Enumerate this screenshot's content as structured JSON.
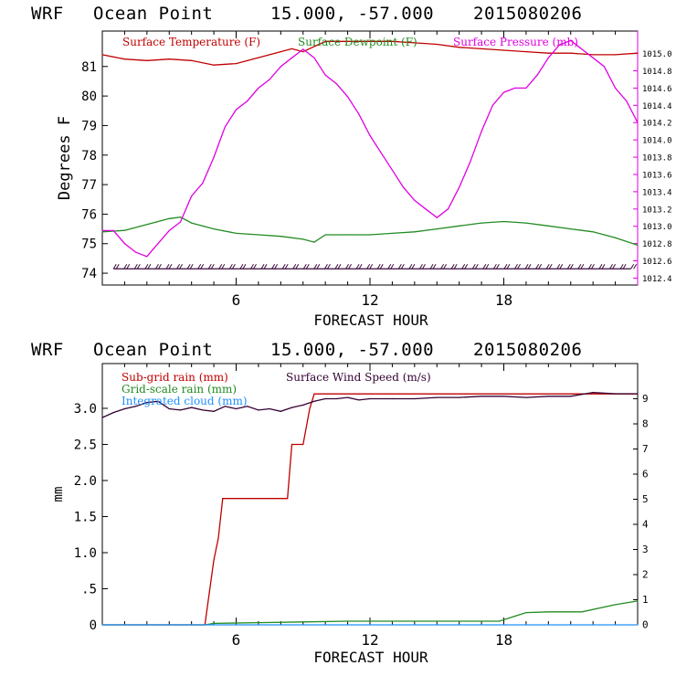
{
  "charts": [
    {
      "header": {
        "model": "WRF",
        "location": "Ocean Point",
        "coords": "15.000, -57.000",
        "date": "2015080206"
      },
      "xlabel": "FORECAST HOUR",
      "ylabel": "Degrees F"
    },
    {
      "header": {
        "model": "WRF",
        "location": "Ocean Point",
        "coords": "15.000, -57.000",
        "date": "2015080206"
      },
      "xlabel": "FORECAST HOUR",
      "ylabel": "mm"
    }
  ],
  "colors": {
    "red": "#c00000",
    "green": "#228b22",
    "magenta": "#e000e0",
    "purple": "#330033",
    "blue": "#1e90ff",
    "barb": "#3a0a3a"
  },
  "chart_data": [
    {
      "type": "line",
      "xlabel": "FORECAST HOUR",
      "ylabel": "Degrees F",
      "xlim": [
        0,
        24
      ],
      "x_ticks": [
        6,
        12,
        18
      ],
      "ylim": [
        73.6,
        82.2
      ],
      "y_ticks": [
        74,
        75,
        76,
        77,
        78,
        79,
        80,
        81
      ],
      "y2lim": [
        1012.32,
        1015.26
      ],
      "y2_ticks": [
        "1012.4",
        "1012.6",
        "1012.8",
        "1013.0",
        "1013.2",
        "1013.4",
        "1013.6",
        "1013.8",
        "1014.0",
        "1014.2",
        "1014.4",
        "1014.6",
        "1014.8",
        "1015.0"
      ],
      "y2_tick_values": [
        1012.4,
        1012.6,
        1012.8,
        1013.0,
        1013.2,
        1013.4,
        1013.6,
        1013.8,
        1014.0,
        1014.2,
        1014.4,
        1014.6,
        1014.8,
        1015.0
      ],
      "legend": [
        "Surface Temperature (F)",
        "Surface Dewpoint (F)",
        "Surface Pressure (mb)"
      ],
      "series": [
        {
          "name": "Surface Temperature (F)",
          "axis": "left",
          "x": [
            0,
            1,
            2,
            3,
            4,
            5,
            6,
            7,
            8,
            8.5,
            9,
            10,
            11,
            12,
            13,
            14,
            15,
            16,
            17,
            18,
            19,
            20,
            21,
            22,
            23,
            24
          ],
          "y": [
            81.4,
            81.25,
            81.2,
            81.25,
            81.2,
            81.05,
            81.1,
            81.3,
            81.5,
            81.6,
            81.5,
            81.85,
            81.85,
            81.85,
            81.85,
            81.8,
            81.75,
            81.65,
            81.6,
            81.55,
            81.5,
            81.45,
            81.45,
            81.4,
            81.4,
            81.45
          ]
        },
        {
          "name": "Surface Dewpoint (F)",
          "axis": "left",
          "x": [
            0,
            1,
            2,
            3,
            3.5,
            4,
            5,
            6,
            7,
            8,
            9,
            9.5,
            10,
            11,
            12,
            13,
            14,
            15,
            16,
            17,
            18,
            19,
            20,
            21,
            22,
            23,
            24
          ],
          "y": [
            75.4,
            75.45,
            75.65,
            75.85,
            75.9,
            75.7,
            75.5,
            75.35,
            75.3,
            75.25,
            75.15,
            75.05,
            75.3,
            75.3,
            75.3,
            75.35,
            75.4,
            75.5,
            75.6,
            75.7,
            75.75,
            75.7,
            75.6,
            75.5,
            75.4,
            75.2,
            74.95
          ]
        },
        {
          "name": "Surface Pressure (mb)",
          "axis": "right",
          "x": [
            0,
            0.5,
            1,
            1.5,
            2,
            2.5,
            3,
            3.5,
            4,
            4.5,
            5,
            5.5,
            6,
            6.5,
            7,
            7.5,
            8,
            8.5,
            9,
            9.5,
            10,
            10.5,
            11,
            11.5,
            12,
            12.5,
            13,
            13.5,
            14,
            14.5,
            15,
            15.5,
            16,
            16.5,
            17,
            17.5,
            18,
            18.5,
            19,
            19.5,
            20,
            20.5,
            21,
            21.5,
            22,
            22.5,
            23,
            23.5,
            24
          ],
          "y": [
            1012.95,
            1012.95,
            1012.8,
            1012.7,
            1012.65,
            1012.8,
            1012.95,
            1013.05,
            1013.35,
            1013.5,
            1013.8,
            1014.15,
            1014.35,
            1014.45,
            1014.6,
            1014.7,
            1014.85,
            1014.95,
            1015.05,
            1014.95,
            1014.75,
            1014.65,
            1014.5,
            1014.3,
            1014.05,
            1013.85,
            1013.65,
            1013.45,
            1013.3,
            1013.2,
            1013.1,
            1013.2,
            1013.45,
            1013.75,
            1014.1,
            1014.4,
            1014.55,
            1014.6,
            1014.6,
            1014.75,
            1014.95,
            1015.1,
            1015.15,
            1015.05,
            1014.95,
            1014.85,
            1014.6,
            1014.45,
            1014.2
          ]
        }
      ],
      "wind_barbs": {
        "count": 50,
        "y": 74.15
      }
    },
    {
      "type": "line",
      "xlabel": "FORECAST HOUR",
      "ylabel": "mm",
      "xlim": [
        0,
        24
      ],
      "x_ticks": [
        6,
        12,
        18
      ],
      "ylim": [
        0,
        3.62
      ],
      "y_ticks": [
        "0",
        ".5",
        "1.0",
        "1.5",
        "2.0",
        "2.5",
        "3.0"
      ],
      "y_tick_values": [
        0,
        0.5,
        1.0,
        1.5,
        2.0,
        2.5,
        3.0
      ],
      "y2lim": [
        0,
        10.4
      ],
      "y2_ticks": [
        "0",
        "1",
        "2",
        "3",
        "4",
        "5",
        "6",
        "7",
        "8",
        "9"
      ],
      "y2_tick_values": [
        0,
        1,
        2,
        3,
        4,
        5,
        6,
        7,
        8,
        9
      ],
      "legend": [
        "Sub-grid rain (mm)",
        "Surface Wind Speed (m/s)",
        "Grid-scale rain (mm)",
        "Integrated cloud (mm)"
      ],
      "series": [
        {
          "name": "Sub-grid rain (mm)",
          "axis": "left",
          "x": [
            0,
            4.6,
            4.8,
            5.0,
            5.2,
            5.4,
            8.3,
            8.5,
            9.0,
            9.3,
            9.5,
            24
          ],
          "y": [
            0,
            0,
            0.45,
            0.9,
            1.2,
            1.75,
            1.75,
            2.5,
            2.5,
            3.0,
            3.2,
            3.2
          ]
        },
        {
          "name": "Surface Wind Speed (m/s)",
          "axis": "right",
          "x": [
            0,
            0.5,
            1,
            1.5,
            2,
            2.5,
            3,
            3.5,
            4,
            4.5,
            5,
            5.5,
            6,
            6.5,
            7,
            7.5,
            8,
            8.5,
            9,
            9.5,
            10,
            10.5,
            11,
            11.5,
            12,
            13,
            14,
            15,
            16,
            17,
            18,
            19,
            20,
            21,
            22,
            23,
            24
          ],
          "y": [
            8.25,
            8.45,
            8.6,
            8.7,
            8.85,
            8.9,
            8.6,
            8.55,
            8.65,
            8.55,
            8.5,
            8.7,
            8.6,
            8.7,
            8.55,
            8.6,
            8.5,
            8.65,
            8.75,
            8.9,
            9.0,
            9.0,
            9.05,
            8.95,
            9.0,
            9.0,
            9.0,
            9.05,
            9.05,
            9.1,
            9.1,
            9.05,
            9.1,
            9.1,
            9.25,
            9.2,
            9.2
          ]
        },
        {
          "name": "Grid-scale rain (mm)",
          "axis": "left",
          "x": [
            0,
            4.6,
            5,
            7,
            9,
            11,
            13,
            17.8,
            18.5,
            19,
            20,
            21.5,
            23,
            24
          ],
          "y": [
            0,
            0,
            0.02,
            0.03,
            0.04,
            0.05,
            0.05,
            0.05,
            0.12,
            0.17,
            0.18,
            0.18,
            0.28,
            0.33
          ]
        },
        {
          "name": "Integrated cloud (mm)",
          "axis": "left",
          "x": [
            0,
            24
          ],
          "y": [
            0,
            0
          ]
        }
      ]
    }
  ]
}
